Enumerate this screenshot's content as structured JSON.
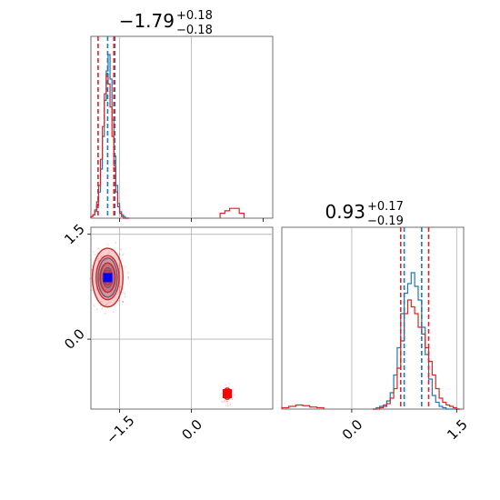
{
  "chart_data": {
    "type": "corner",
    "params": [
      {
        "median": -1.79,
        "err_plus": "+0.18",
        "err_minus": "−0.18",
        "title_main": "−1.79",
        "title_sup": "+0.18",
        "title_sub": "−0.18"
      },
      {
        "median": 0.93,
        "err_plus": "+0.17",
        "err_minus": "−0.19",
        "title_main": "0.93",
        "title_sup": "+0.17",
        "title_sub": "−0.19"
      }
    ],
    "xlim": [
      -2.1,
      1.7
    ],
    "ylim": [
      -1.0,
      1.6
    ],
    "x_ticks": [
      {
        "v": -1.5,
        "label": "−1.5"
      },
      {
        "v": 0.0,
        "label": "0.0"
      }
    ],
    "y_ticks": [
      {
        "v": 1.5,
        "label": "1.5"
      },
      {
        "v": 0.0,
        "label": "0.0"
      }
    ],
    "d_ticks": [
      {
        "v": 0.0,
        "label": "0.0"
      },
      {
        "v": 1.5,
        "label": "1.5"
      }
    ],
    "hist_ticks_x": [
      -1.5,
      0.0,
      1.5
    ],
    "series": [
      {
        "color": "#1f77b4",
        "quantiles_x": [
          -1.75,
          -1.6
        ],
        "quantiles_y": [
          0.75,
          1.0
        ]
      },
      {
        "color": "#d62728",
        "quantiles_x": [
          -1.95,
          -1.62
        ],
        "quantiles_y": [
          0.7,
          1.1
        ]
      }
    ],
    "hist1": {
      "x": [
        -2.1,
        -2.06,
        -2.02,
        -1.98,
        -1.94,
        -1.9,
        -1.86,
        -1.82,
        -1.78,
        -1.74,
        -1.7,
        -1.66,
        -1.62,
        -1.58,
        -1.54,
        -1.5,
        -1.46,
        -1.42,
        -1.38,
        -1.34
      ],
      "blue": [
        0.01,
        0.02,
        0.04,
        0.08,
        0.16,
        0.3,
        0.5,
        0.72,
        0.9,
        1.0,
        0.85,
        0.6,
        0.38,
        0.2,
        0.09,
        0.04,
        0.02,
        0.01,
        0,
        0
      ],
      "red": [
        0.01,
        0.02,
        0.05,
        0.1,
        0.2,
        0.36,
        0.56,
        0.76,
        0.88,
        0.82,
        0.68,
        0.5,
        0.32,
        0.16,
        0.07,
        0.03,
        0.01,
        0,
        0,
        0
      ],
      "red_tail_x": [
        0.6,
        0.7,
        0.8,
        0.9,
        1.0
      ],
      "red_tail": [
        0.01,
        0.015,
        0.02,
        0.02,
        0.01
      ]
    },
    "hist2": {
      "x": [
        0.3,
        0.35,
        0.4,
        0.45,
        0.5,
        0.55,
        0.6,
        0.65,
        0.7,
        0.75,
        0.8,
        0.85,
        0.9,
        0.95,
        1.0,
        1.05,
        1.1,
        1.15,
        1.2,
        1.25,
        1.3,
        1.35,
        1.4,
        1.45,
        1.5
      ],
      "blue": [
        0,
        0.01,
        0.02,
        0.03,
        0.06,
        0.12,
        0.25,
        0.45,
        0.7,
        0.85,
        0.92,
        1.0,
        0.9,
        0.8,
        0.6,
        0.4,
        0.22,
        0.1,
        0.05,
        0.02,
        0.01,
        0,
        0,
        0,
        0
      ],
      "red": [
        0,
        0,
        0.01,
        0.02,
        0.04,
        0.08,
        0.15,
        0.3,
        0.5,
        0.7,
        0.8,
        0.75,
        0.7,
        0.6,
        0.55,
        0.45,
        0.35,
        0.25,
        0.15,
        0.08,
        0.05,
        0.03,
        0.02,
        0.01,
        0
      ],
      "red_tail_x": [
        -1.0,
        -0.9,
        -0.8,
        -0.7,
        -0.6,
        -0.5
      ],
      "red_tail": [
        0.01,
        0.02,
        0.03,
        0.025,
        0.015,
        0.01
      ]
    },
    "blobs": [
      {
        "cx": -1.75,
        "cy": 0.88,
        "rx": 0.2,
        "ry": 0.28,
        "color": "#1f77b4"
      },
      {
        "cx": -1.75,
        "cy": 0.88,
        "rx": 0.32,
        "ry": 0.42,
        "color": "#d62728"
      },
      {
        "cx": 0.75,
        "cy": -0.78,
        "rx": 0.08,
        "ry": 0.08,
        "color": "#d62728"
      }
    ]
  }
}
